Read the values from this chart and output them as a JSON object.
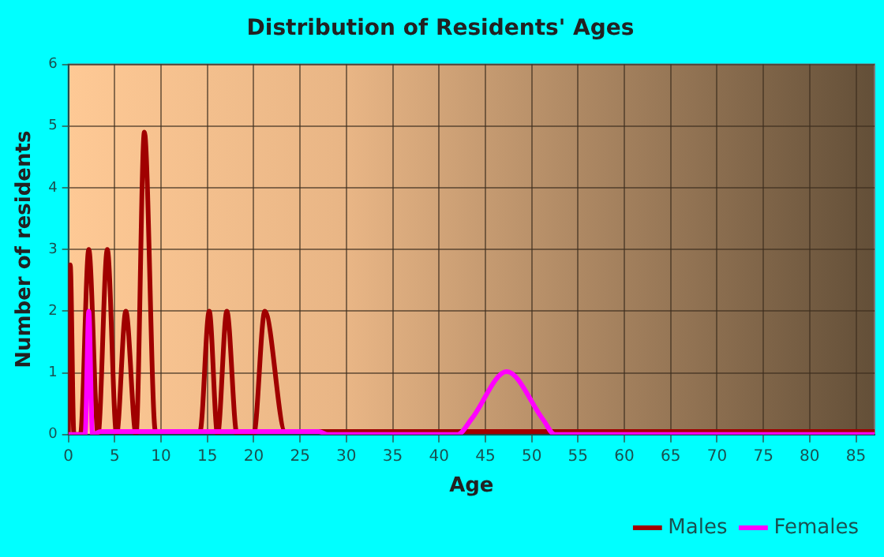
{
  "chart_data": {
    "type": "line",
    "title": "Distribution of Residents' Ages",
    "xlabel": "Age",
    "ylabel": "Number of residents",
    "xlim": [
      0,
      87
    ],
    "xticks": [
      0,
      5,
      10,
      15,
      20,
      25,
      30,
      35,
      40,
      45,
      50,
      55,
      60,
      65,
      70,
      75,
      80,
      85
    ],
    "ylim": [
      0,
      6
    ],
    "yticks": [
      0,
      1,
      2,
      3,
      4,
      5,
      6
    ],
    "grid": true,
    "legend": "bottom right",
    "marker": "none",
    "line_style": "solid",
    "series": [
      {
        "name": "Males",
        "color": "#a00000",
        "x": [
          0,
          0.2,
          0.6,
          1.3,
          2.2,
          3.2,
          4.2,
          5.2,
          6.2,
          7.3,
          8.2,
          9.4,
          14.2,
          15.2,
          16.1,
          17.1,
          18.2,
          20,
          21.2,
          23.4,
          87
        ],
        "values": [
          0,
          2.75,
          0,
          0,
          3,
          0,
          3,
          0,
          2,
          0,
          4.9,
          0.05,
          0.05,
          2,
          0,
          2,
          0,
          0,
          2,
          0.05,
          0.05
        ]
      },
      {
        "name": "Females",
        "color": "#ff00ff",
        "x": [
          0,
          1.8,
          2.2,
          2.6,
          3.5,
          27,
          28,
          42,
          43.5,
          47.3,
          51.2,
          52.5,
          87
        ],
        "values": [
          0,
          0,
          2,
          0,
          0.05,
          0.05,
          0,
          0,
          0.25,
          1.02,
          0.25,
          0,
          0
        ]
      }
    ]
  }
}
